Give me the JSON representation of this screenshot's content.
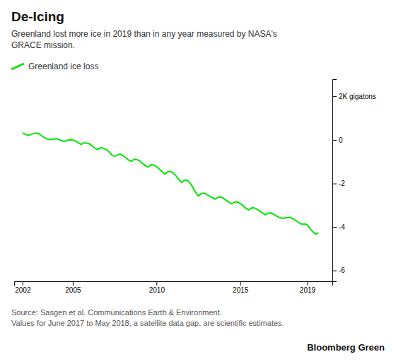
{
  "chart_data": {
    "type": "line",
    "title": "De-Icing",
    "subtitle": "Greenland lost more ice in 2019 than in any year measured by NASA's\nGRACE mission.",
    "source": "Source: Sasgen et al. Communications Earth & Environment.\nValues for June 2017 to May 2018, a satellite data gap, are scientific estimates.",
    "watermark": "Bloomberg Green",
    "legend": "top",
    "x": [
      2002.0,
      2002.17,
      2002.33,
      2002.5,
      2002.67,
      2002.83,
      2003.0,
      2003.17,
      2003.33,
      2003.5,
      2003.67,
      2003.83,
      2004.0,
      2004.17,
      2004.33,
      2004.5,
      2004.67,
      2004.83,
      2005.0,
      2005.17,
      2005.33,
      2005.5,
      2005.67,
      2005.83,
      2006.0,
      2006.17,
      2006.33,
      2006.5,
      2006.67,
      2006.83,
      2007.0,
      2007.17,
      2007.33,
      2007.5,
      2007.67,
      2007.83,
      2008.0,
      2008.17,
      2008.33,
      2008.5,
      2008.67,
      2008.83,
      2009.0,
      2009.17,
      2009.33,
      2009.5,
      2009.67,
      2009.83,
      2010.0,
      2010.17,
      2010.33,
      2010.5,
      2010.67,
      2010.83,
      2011.0,
      2011.17,
      2011.33,
      2011.5,
      2011.67,
      2011.83,
      2012.0,
      2012.17,
      2012.33,
      2012.5,
      2012.67,
      2012.83,
      2013.0,
      2013.17,
      2013.33,
      2013.5,
      2013.67,
      2013.83,
      2014.0,
      2014.17,
      2014.33,
      2014.5,
      2014.67,
      2014.83,
      2015.0,
      2015.17,
      2015.33,
      2015.5,
      2015.67,
      2015.83,
      2016.0,
      2016.17,
      2016.33,
      2016.5,
      2016.67,
      2016.83,
      2017.0,
      2017.17,
      2017.33,
      2017.5,
      2018.0,
      2018.17,
      2018.33,
      2018.5,
      2018.67,
      2018.83,
      2019.0,
      2019.17,
      2019.33,
      2019.5,
      2019.67
    ],
    "series": [
      {
        "name": "Greenland ice loss",
        "color": "#00e600",
        "values": [
          0.32,
          0.28,
          0.2,
          0.26,
          0.3,
          0.32,
          0.28,
          0.18,
          0.1,
          0.04,
          0.02,
          0.04,
          0.06,
          0.02,
          -0.03,
          -0.06,
          -0.01,
          0.01,
          0.0,
          -0.04,
          -0.12,
          -0.2,
          -0.13,
          -0.14,
          -0.18,
          -0.28,
          -0.38,
          -0.44,
          -0.35,
          -0.38,
          -0.44,
          -0.55,
          -0.68,
          -0.76,
          -0.68,
          -0.65,
          -0.72,
          -0.82,
          -0.92,
          -0.98,
          -0.88,
          -0.9,
          -0.96,
          -1.08,
          -1.18,
          -1.24,
          -1.14,
          -1.15,
          -1.22,
          -1.34,
          -1.46,
          -1.56,
          -1.46,
          -1.44,
          -1.52,
          -1.65,
          -1.82,
          -1.96,
          -1.85,
          -1.85,
          -1.98,
          -2.18,
          -2.4,
          -2.58,
          -2.46,
          -2.44,
          -2.5,
          -2.58,
          -2.65,
          -2.72,
          -2.63,
          -2.62,
          -2.68,
          -2.78,
          -2.86,
          -2.94,
          -2.85,
          -2.85,
          -2.92,
          -3.02,
          -3.14,
          -3.22,
          -3.13,
          -3.12,
          -3.18,
          -3.28,
          -3.36,
          -3.44,
          -3.36,
          -3.35,
          -3.42,
          -3.5,
          -3.56,
          -3.6,
          -3.56,
          -3.63,
          -3.71,
          -3.8,
          -3.88,
          -3.86,
          -3.9,
          -4.08,
          -4.22,
          -4.32,
          -4.28
        ]
      }
    ],
    "xlim": [
      2001.5,
      2020.5
    ],
    "xticks": [
      2002,
      2005,
      2010,
      2015,
      2019
    ],
    "ylim": [
      -6.5,
      2.8
    ],
    "yticks": [
      0,
      -2,
      -4,
      -6
    ],
    "annotations": [
      {
        "text": "2K gigatons",
        "y": 2
      }
    ]
  }
}
